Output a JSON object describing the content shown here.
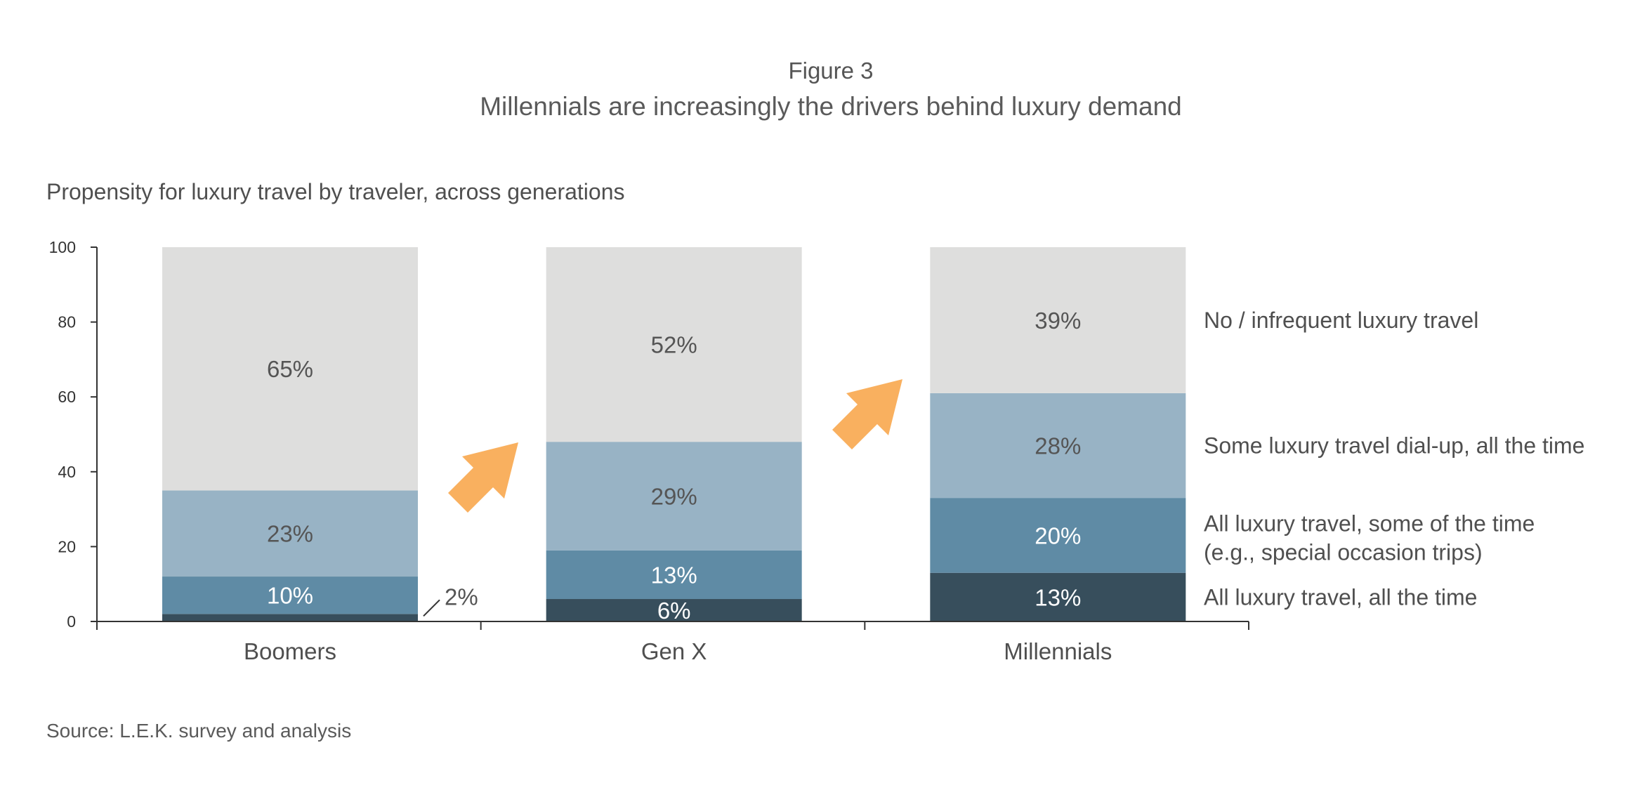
{
  "chart_data": {
    "type": "bar",
    "stacked": true,
    "figure_label": "Figure 3",
    "title": "Millennials are increasingly the drivers behind luxury demand",
    "subtitle": "Propensity for luxury travel by traveler, across generations",
    "source": "Source: L.E.K. survey and analysis",
    "categories": [
      "Boomers",
      "Gen X",
      "Millennials"
    ],
    "ylim": [
      0,
      100
    ],
    "yticks": [
      0,
      20,
      40,
      60,
      80,
      100
    ],
    "legend_position": "right",
    "series": [
      {
        "name": "All luxury travel, all the time",
        "values": [
          2,
          6,
          13
        ],
        "labels": [
          "2%",
          "6%",
          "13%"
        ],
        "color": "#374e5c"
      },
      {
        "name": "All luxury travel, some of the time",
        "name_line2": "(e.g., special occasion trips)",
        "values": [
          10,
          13,
          20
        ],
        "labels": [
          "10%",
          "13%",
          "20%"
        ],
        "color": "#5f8ba5"
      },
      {
        "name": "Some luxury travel dial-up, all the time",
        "values": [
          23,
          29,
          28
        ],
        "labels": [
          "23%",
          "29%",
          "28%"
        ],
        "color": "#98b3c5"
      },
      {
        "name": "No / infrequent luxury travel",
        "values": [
          65,
          52,
          39
        ],
        "labels": [
          "65%",
          "52%",
          "39%"
        ],
        "color": "#dededd"
      }
    ],
    "accent_color": "#f9b05f",
    "axis_color": "#333333"
  }
}
